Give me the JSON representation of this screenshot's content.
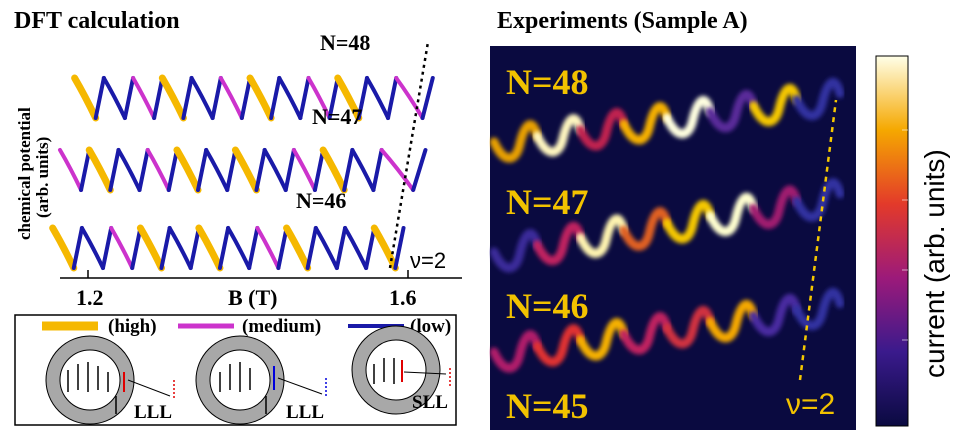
{
  "left_panel": {
    "title": "DFT calculation",
    "ylabel_line1": "chemical potential",
    "ylabel_line2": "(arb. units)",
    "xlabel": "B (T)",
    "xticks": [
      "1.2",
      "1.6"
    ],
    "curve_labels": [
      "N=48",
      "N=47",
      "N=46"
    ],
    "nu_label": "ν=2"
  },
  "legend": {
    "items": [
      {
        "label": "(high)",
        "color": "#f5b800"
      },
      {
        "label": "(medium)",
        "color": "#cc33cc"
      },
      {
        "label": "(low)",
        "color": "#1a1aa8"
      }
    ],
    "diagram_labels": [
      "LLL",
      "LLL",
      "SLL"
    ]
  },
  "right_panel": {
    "title": "Experiments (Sample A)",
    "trace_labels": [
      "N=48",
      "N=47",
      "N=46",
      "N=45"
    ],
    "nu_label": "ν=2",
    "colorbar_label": "current (arb. units)"
  },
  "chart_data": [
    {
      "type": "line",
      "title": "DFT calculation",
      "xlabel": "B (T)",
      "ylabel": "chemical potential (arb. units)",
      "xlim": [
        1.15,
        1.7
      ],
      "series": [
        {
          "name": "N=48",
          "x": [
            1.17,
            1.21,
            1.25,
            1.29,
            1.33,
            1.37,
            1.41,
            1.45,
            1.49,
            1.53,
            1.57,
            1.61,
            1.66
          ]
        },
        {
          "name": "N=47",
          "x": [
            1.15,
            1.19,
            1.23,
            1.27,
            1.31,
            1.35,
            1.39,
            1.43,
            1.47,
            1.51,
            1.55,
            1.59,
            1.65
          ]
        },
        {
          "name": "N=46",
          "x": [
            1.14,
            1.18,
            1.22,
            1.26,
            1.3,
            1.34,
            1.38,
            1.42,
            1.46,
            1.5,
            1.54,
            1.58,
            1.62
          ]
        }
      ]
    },
    {
      "type": "heatmap",
      "title": "Experiments (Sample A)",
      "colorbar": "current (arb. units)",
      "traces": [
        "N=48",
        "N=47",
        "N=46",
        "N=45"
      ]
    }
  ]
}
